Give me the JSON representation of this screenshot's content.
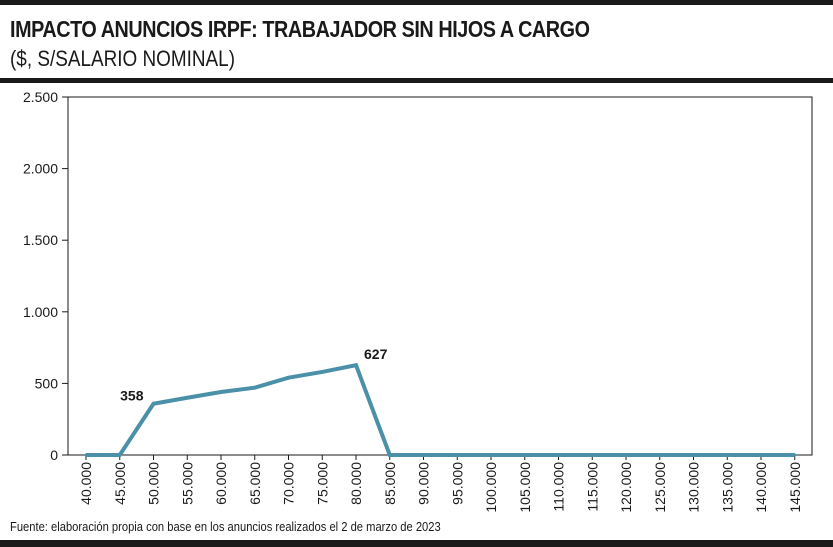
{
  "header": {
    "title": "IMPACTO ANUNCIOS IRPF: TRABAJADOR SIN HIJOS A CARGO",
    "subtitle": "($, S/SALARIO NOMINAL)"
  },
  "footer": {
    "source": "Fuente: elaboración propia con base en los anuncios realizados el 2 de marzo de 2023"
  },
  "chart_data": {
    "type": "line",
    "title": "IMPACTO ANUNCIOS IRPF: TRABAJADOR SIN HIJOS A CARGO",
    "subtitle": "($, S/SALARIO NOMINAL)",
    "categories": [
      "40.000",
      "45.000",
      "50.000",
      "55.000",
      "60.000",
      "65.000",
      "70.000",
      "75.000",
      "80.000",
      "85.000",
      "90.000",
      "95.000",
      "100.000",
      "105.000",
      "110.000",
      "115.000",
      "120.000",
      "125.000",
      "130.000",
      "135.000",
      "140.000",
      "145.000"
    ],
    "values": [
      0,
      0,
      358,
      400,
      440,
      470,
      540,
      580,
      627,
      0,
      0,
      0,
      0,
      0,
      0,
      0,
      0,
      0,
      0,
      0,
      0,
      0
    ],
    "y_ticks": [
      0,
      500,
      1000,
      1500,
      2000,
      2500
    ],
    "y_tick_labels": [
      "0",
      "500",
      "1.000",
      "1.500",
      "2.000",
      "2.500"
    ],
    "ylim": [
      0,
      2500
    ],
    "data_labels": [
      {
        "category": "50.000",
        "text": "358"
      },
      {
        "category": "80.000",
        "text": "627"
      }
    ],
    "grid": false,
    "line_color": "#4a90a8"
  }
}
